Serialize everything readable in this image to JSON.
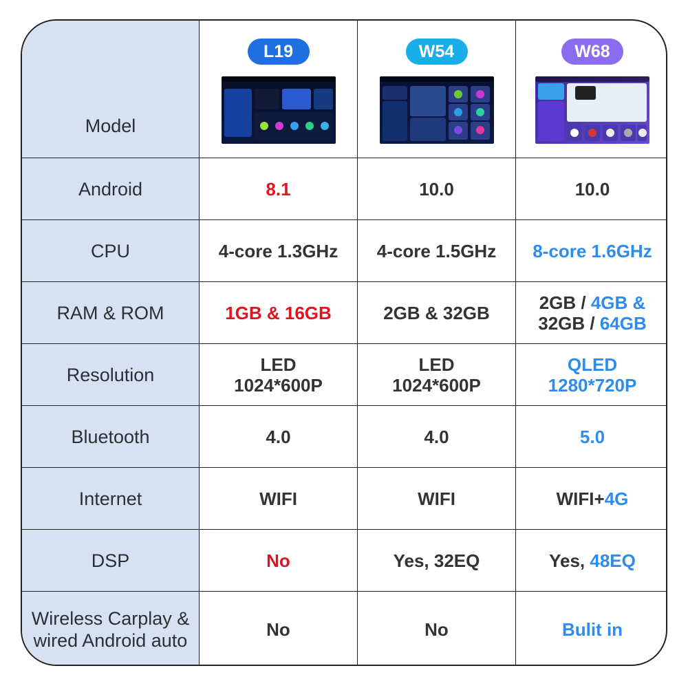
{
  "colors": {
    "label_bg": "#d6e2f1",
    "text": "#333333",
    "red": "#e0141e",
    "blue": "#2d8cf0"
  },
  "header": {
    "label": "Model",
    "models": [
      {
        "name": "L19",
        "pill_color": "#1f6fe0",
        "screen": "l19-screen-image"
      },
      {
        "name": "W54",
        "pill_color": "#1aaee8",
        "screen": "w54-screen-image"
      },
      {
        "name": "W68",
        "pill_color": "#8a6cf0",
        "screen": "w68-screen-image"
      }
    ]
  },
  "rows": [
    {
      "label": "Android",
      "cells": [
        [
          {
            "t": "8.1",
            "c": "red"
          }
        ],
        [
          {
            "t": "10.0"
          }
        ],
        [
          {
            "t": "10.0"
          }
        ]
      ]
    },
    {
      "label": "CPU",
      "cells": [
        [
          {
            "t": "4-core 1.3GHz"
          }
        ],
        [
          {
            "t": "4-core 1.5GHz"
          }
        ],
        [
          {
            "t": "8-core 1.6GHz",
            "c": "blue"
          }
        ]
      ]
    },
    {
      "label": "RAM & ROM",
      "cells": [
        [
          {
            "t": "1GB & 16GB",
            "c": "red"
          }
        ],
        [
          {
            "t": "2GB & 32GB"
          }
        ],
        [
          {
            "t": "2GB / "
          },
          {
            "t": "4GB &",
            "c": "blue"
          },
          {
            "br": true
          },
          {
            "t": "32GB / "
          },
          {
            "t": "64GB",
            "c": "blue"
          }
        ]
      ]
    },
    {
      "label": "Resolution",
      "cells": [
        [
          {
            "t": "LED"
          },
          {
            "br": true
          },
          {
            "t": "1024*600P"
          }
        ],
        [
          {
            "t": "LED"
          },
          {
            "br": true
          },
          {
            "t": "1024*600P"
          }
        ],
        [
          {
            "t": "QLED",
            "c": "blue"
          },
          {
            "br": true
          },
          {
            "t": "1280*720P",
            "c": "blue"
          }
        ]
      ]
    },
    {
      "label": "Bluetooth",
      "cells": [
        [
          {
            "t": "4.0"
          }
        ],
        [
          {
            "t": "4.0"
          }
        ],
        [
          {
            "t": "5.0",
            "c": "blue"
          }
        ]
      ]
    },
    {
      "label": "Internet",
      "cells": [
        [
          {
            "t": "WIFI"
          }
        ],
        [
          {
            "t": "WIFI"
          }
        ],
        [
          {
            "t": "WIFI+"
          },
          {
            "t": "4G",
            "c": "blue"
          }
        ]
      ]
    },
    {
      "label": "DSP",
      "cells": [
        [
          {
            "t": "No",
            "c": "red"
          }
        ],
        [
          {
            "t": "Yes, 32EQ"
          }
        ],
        [
          {
            "t": "Yes, "
          },
          {
            "t": "48EQ",
            "c": "blue"
          }
        ]
      ]
    },
    {
      "label": "Wireless Carplay & wired Android auto",
      "label_lines": [
        "Wireless Carplay &",
        "wired Android auto"
      ],
      "cells": [
        [
          {
            "t": "No"
          }
        ],
        [
          {
            "t": "No"
          }
        ],
        [
          {
            "t": "Bulit in",
            "c": "blue"
          }
        ]
      ]
    }
  ]
}
